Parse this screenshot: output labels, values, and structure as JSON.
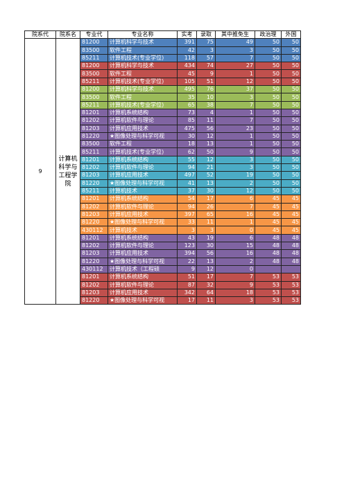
{
  "table": {
    "columns": [
      "院系代",
      "院系名",
      "专业代",
      "专业名称",
      "实考",
      "录取",
      "其中推免生",
      "政治理",
      "外国"
    ],
    "dept_code": "9",
    "dept_name": "计算机科学与工程学院",
    "groups": [
      {
        "color": "#4f81bd",
        "rows": [
          [
            "81200",
            "计算机科学与技术",
            391,
            75,
            49,
            50,
            50
          ],
          [
            "83500",
            "软件工程",
            42,
            3,
            3,
            50,
            50
          ],
          [
            "85211",
            "计算机技术(专业学位)",
            118,
            57,
            7,
            50,
            50
          ]
        ]
      },
      {
        "color": "#c0504d",
        "rows": [
          [
            "81200",
            "计算机科学与技术",
            434,
            74,
            27,
            50,
            50
          ],
          [
            "83500",
            "软件工程",
            45,
            9,
            1,
            50,
            50
          ],
          [
            "85211",
            "计算机技术(专业学位)",
            105,
            51,
            12,
            50,
            50
          ]
        ]
      },
      {
        "color": "#9bbb59",
        "rows": [
          [
            "81200",
            "计算机科学与技术",
            495,
            76,
            37,
            50,
            50
          ],
          [
            "83500",
            "软件工程",
            35,
            10,
            3,
            50,
            50
          ],
          [
            "85211",
            "计算机技术(专业学位)",
            65,
            38,
            7,
            50,
            50
          ]
        ]
      },
      {
        "color": "#8064a2",
        "rows": [
          [
            "81201",
            "计算机系统结构",
            73,
            4,
            1,
            50,
            50
          ],
          [
            "81202",
            "计算机软件与理论",
            85,
            11,
            7,
            50,
            50
          ],
          [
            "81203",
            "计算机应用技术",
            475,
            56,
            23,
            50,
            50
          ],
          [
            "81220",
            "★图像处理与科学可视",
            30,
            12,
            1,
            50,
            50
          ],
          [
            "83500",
            "软件工程",
            18,
            13,
            1,
            50,
            50
          ],
          [
            "85211",
            "计算机技术(专业学位)",
            62,
            50,
            9,
            50,
            50
          ]
        ]
      },
      {
        "color": "#4bacc6",
        "rows": [
          [
            "81201",
            "计算机系统结构",
            55,
            12,
            3,
            50,
            50
          ],
          [
            "81202",
            "计算机软件与理论",
            94,
            21,
            3,
            50,
            50
          ],
          [
            "81203",
            "计算机应用技术",
            497,
            52,
            19,
            50,
            50
          ],
          [
            "81220",
            "★图像处理与科学可视",
            41,
            13,
            2,
            50,
            50
          ],
          [
            "85211",
            "计算机技术",
            37,
            30,
            12,
            50,
            50
          ]
        ]
      },
      {
        "color": "#f79646",
        "rows": [
          [
            "81201",
            "计算机系统结构",
            54,
            17,
            6,
            45,
            45
          ],
          [
            "81202",
            "计算机软件与理论",
            94,
            26,
            7,
            45,
            45
          ],
          [
            "81203",
            "计算机应用技术",
            397,
            65,
            16,
            45,
            45
          ],
          [
            "81220",
            "★图像处理与科学可视",
            33,
            11,
            1,
            45,
            45
          ],
          [
            "430112",
            "计算机技术",
            3,
            3,
            0,
            45,
            45
          ]
        ]
      },
      {
        "color": "#8064a2",
        "rows": [
          [
            "81201",
            "计算机系统结构",
            43,
            19,
            6,
            48,
            48
          ],
          [
            "81202",
            "计算机软件与理论",
            123,
            30,
            15,
            48,
            48
          ],
          [
            "81203",
            "计算机应用技术",
            394,
            56,
            16,
            48,
            48
          ],
          [
            "81220",
            "★图像处理与科学可视",
            22,
            13,
            2,
            48,
            48
          ],
          [
            "430112",
            "计算机技术（工程硕",
            9,
            12,
            0,
            null,
            null
          ]
        ]
      },
      {
        "color": "#c0504d",
        "rows": [
          [
            "81201",
            "计算机系统结构",
            51,
            17,
            7,
            53,
            53
          ],
          [
            "81202",
            "计算机软件与理论",
            87,
            32,
            9,
            53,
            53
          ],
          [
            "81203",
            "计算机应用技术",
            342,
            64,
            18,
            53,
            53
          ],
          [
            "81220",
            "★图像处理与科学可视",
            17,
            11,
            3,
            53,
            53
          ]
        ]
      }
    ]
  }
}
